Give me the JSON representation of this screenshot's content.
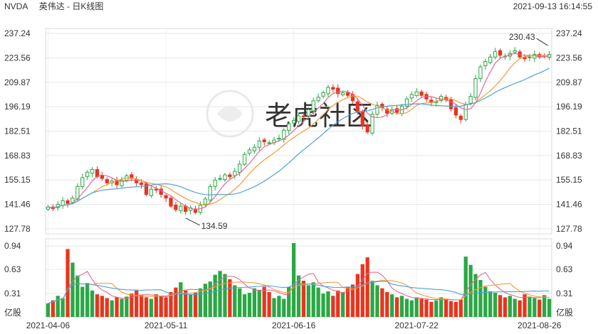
{
  "header": {
    "symbol": "NVDA",
    "chart_name": "英伟达 - 日K线图",
    "timestamp": "2021-09-13 16:14:55"
  },
  "watermark": {
    "text": "老虎社区"
  },
  "colors": {
    "up": "#2aa845",
    "down": "#e8351e",
    "ma5": "#e06a8e",
    "ma10": "#f39a3a",
    "ma20": "#4da1d8",
    "grid": "#e6e6e6"
  },
  "chart_data": [
    {
      "type": "candlestick",
      "title": "英伟达 - 日K线图",
      "y_ticks_left": [
        "237.24",
        "223.56",
        "209.87",
        "196.19",
        "182.51",
        "168.83",
        "155.15",
        "141.46",
        "127.78"
      ],
      "y_ticks_right": [
        "237.24",
        "223.56",
        "209.87",
        "196.19",
        "182.51",
        "168.83",
        "155.15",
        "141.46",
        "127.78"
      ],
      "ylim": [
        127.78,
        237.24
      ],
      "x_ticks": [
        {
          "label": "2021-04-06",
          "index": 0
        },
        {
          "label": "2021-05-11",
          "index": 24
        },
        {
          "label": "2021-06-16",
          "index": 50
        },
        {
          "label": "2021-07-22",
          "index": 75
        },
        {
          "label": "2021-08-26",
          "index": 100
        }
      ],
      "annotations": [
        {
          "text": "134.59",
          "index": 28,
          "value": 134.59,
          "kind": "low"
        },
        {
          "text": "230.43",
          "index": 102,
          "value": 230.43,
          "kind": "high"
        }
      ],
      "series": [
        {
          "name": "MA5",
          "color": "#e06a8e"
        },
        {
          "name": "MA10",
          "color": "#f39a3a"
        },
        {
          "name": "MA20",
          "color": "#4da1d8"
        }
      ],
      "close": [
        140.0,
        139.0,
        141.5,
        143.5,
        142.0,
        145.0,
        151.5,
        156.5,
        159.5,
        161.0,
        157.0,
        156.0,
        153.5,
        154.5,
        152.5,
        155.0,
        157.5,
        156.0,
        153.5,
        152.5,
        147.0,
        150.0,
        149.5,
        147.0,
        145.0,
        140.5,
        138.5,
        140.5,
        137.5,
        139.5,
        137.0,
        141.0,
        144.5,
        151.5,
        155.0,
        156.0,
        158.0,
        157.0,
        160.0,
        164.0,
        169.5,
        172.0,
        173.5,
        177.0,
        176.5,
        176.0,
        177.5,
        178.5,
        183.0,
        186.5,
        188.5,
        191.0,
        190.5,
        194.5,
        199.5,
        201.5,
        204.0,
        207.0,
        206.0,
        203.5,
        204.0,
        202.5,
        199.5,
        193.5,
        185.5,
        182.0,
        192.0,
        197.0,
        195.5,
        192.5,
        194.5,
        193.0,
        196.5,
        200.5,
        203.0,
        204.5,
        202.5,
        200.5,
        198.5,
        199.0,
        202.0,
        200.0,
        195.0,
        191.5,
        189.0,
        197.5,
        202.0,
        212.0,
        218.5,
        221.5,
        224.0,
        227.0,
        225.0,
        224.5,
        226.0,
        227.5,
        224.0,
        223.0,
        224.0,
        225.5,
        224.0,
        224.5,
        225.5
      ],
      "volume": [
        0.18,
        0.22,
        0.28,
        0.25,
        0.9,
        0.72,
        0.55,
        0.4,
        0.45,
        0.35,
        0.3,
        0.28,
        0.25,
        0.22,
        0.26,
        0.24,
        0.27,
        0.31,
        0.35,
        0.29,
        0.26,
        0.24,
        0.3,
        0.28,
        0.26,
        0.33,
        0.39,
        0.46,
        0.35,
        0.3,
        0.32,
        0.38,
        0.44,
        0.47,
        0.56,
        0.61,
        0.57,
        0.5,
        0.42,
        0.38,
        0.3,
        0.32,
        0.38,
        0.36,
        0.4,
        0.33,
        0.25,
        0.28,
        0.24,
        0.4,
        0.98,
        0.55,
        0.48,
        0.42,
        0.46,
        0.39,
        0.31,
        0.34,
        0.28,
        0.35,
        0.33,
        0.4,
        0.43,
        0.57,
        0.7,
        0.79,
        0.48,
        0.42,
        0.38,
        0.33,
        0.3,
        0.26,
        0.28,
        0.24,
        0.22,
        0.26,
        0.24,
        0.23,
        0.2,
        0.22,
        0.26,
        0.24,
        0.21,
        0.2,
        0.23,
        0.8,
        0.69,
        0.57,
        0.49,
        0.4,
        0.34,
        0.32,
        0.29,
        0.26,
        0.28,
        0.24,
        0.22,
        0.3,
        0.27,
        0.25,
        0.23,
        0.29,
        0.24
      ],
      "volume_ticks": [
        "0.94",
        "0.63",
        "0.31"
      ],
      "volume_unit": "亿股",
      "volume_ylim": [
        0,
        0.98
      ]
    }
  ]
}
